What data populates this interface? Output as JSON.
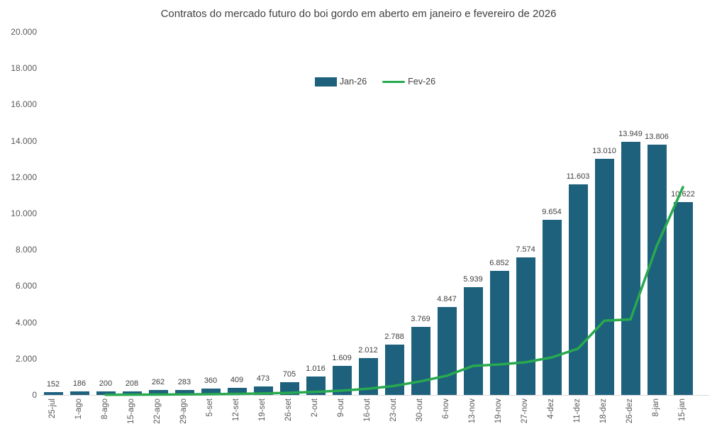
{
  "chart_data": {
    "type": "bar+line",
    "title": "Contratos do mercado futuro do boi gordo em aberto em janeiro e fevereiro de 2026",
    "categories": [
      "25-jul",
      "1-ago",
      "8-ago",
      "15-ago",
      "22-ago",
      "29-ago",
      "5-set",
      "12-set",
      "19-set",
      "26-set",
      "2-out",
      "9-out",
      "16-out",
      "23-out",
      "30-out",
      "6-nov",
      "13-nov",
      "19-nov",
      "27-nov",
      "4-dez",
      "11-dez",
      "18-dez",
      "26-dez",
      "8-jan",
      "15-jan"
    ],
    "series": [
      {
        "name": "Jan-26",
        "type": "bar",
        "color": "#1d617d",
        "values": [
          152,
          186,
          200,
          208,
          262,
          283,
          360,
          409,
          473,
          705,
          1016,
          1609,
          2012,
          2788,
          3769,
          4847,
          5939,
          6852,
          7574,
          9654,
          11603,
          13010,
          13949,
          13806,
          10622
        ],
        "data_labels": [
          "152",
          "186",
          "200",
          "208",
          "262",
          "283",
          "360",
          "409",
          "473",
          "705",
          "1.016",
          "1.609",
          "2.012",
          "2.788",
          "3.769",
          "4.847",
          "5.939",
          "6.852",
          "7.574",
          "9.654",
          "11.603",
          "13.010",
          "13.949",
          "13.806",
          "10.622"
        ]
      },
      {
        "name": "Fev-26",
        "type": "line",
        "color": "#28a94f",
        "values": [
          null,
          null,
          10,
          15,
          20,
          30,
          45,
          60,
          85,
          115,
          170,
          240,
          340,
          500,
          750,
          1060,
          1600,
          1680,
          1800,
          2070,
          2550,
          4090,
          4160,
          8200,
          11450
        ]
      }
    ],
    "ylim": [
      0,
      20000
    ],
    "y_tick_step": 2000,
    "xlabel": "",
    "ylabel": "",
    "grid": false,
    "legend_position": "top-center"
  }
}
